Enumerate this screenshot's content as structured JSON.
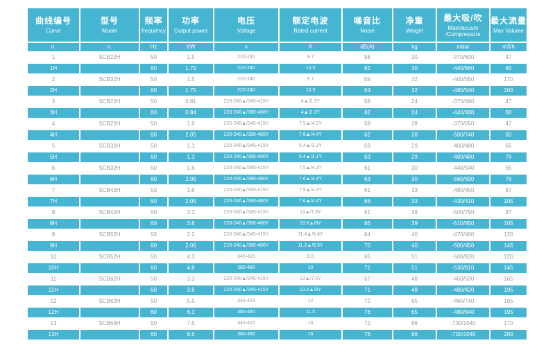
{
  "colors": {
    "teal": "#46b5d1",
    "row_text_grey": "#9a9a9a",
    "row_text_white": "#ffffff",
    "gridline": "#ffffff"
  },
  "chart_data": {
    "type": "table",
    "title": "",
    "legend": "none",
    "grid": "white gridlines, alternating white/teal rows",
    "columns": [
      {
        "zh": "曲线编号",
        "en": "Curve",
        "unit": "n."
      },
      {
        "zh": "型号",
        "en": "Model",
        "unit": "n."
      },
      {
        "zh": "频率",
        "en": "frequency",
        "unit": "Hz"
      },
      {
        "zh": "功率",
        "en": "Output power",
        "unit": "KW"
      },
      {
        "zh": "电压",
        "en": "Voltage",
        "unit": "v"
      },
      {
        "zh": "额定电波",
        "en": "Rated current",
        "unit": "A"
      },
      {
        "zh": "噪音比",
        "en": "Noise",
        "unit": "dB(A)"
      },
      {
        "zh": "净重",
        "en": "Weight",
        "unit": "kg"
      },
      {
        "zh": "最大吸/吹",
        "en": "MaxVacuum\n/Compressure",
        "unit": "mbar"
      },
      {
        "zh": "最大流量",
        "en": "Max Volume",
        "unit": "m3/h"
      }
    ],
    "rows": [
      [
        "1",
        "SCB22H",
        "50",
        "1.5",
        "220-240",
        "9.7",
        "58",
        "30",
        "-370/600",
        "47"
      ],
      [
        "1H",
        "",
        "60",
        "1.75",
        "220-240",
        "10.3",
        "62",
        "30",
        "-440/660",
        "60"
      ],
      [
        "2",
        "SCB32H",
        "50",
        "1.5",
        "220-240",
        "9.7",
        "59",
        "32",
        "-400/550",
        "170"
      ],
      [
        "2H",
        "",
        "60",
        "1.75",
        "220-240",
        "10.3",
        "63",
        "32",
        "-480/540",
        "200"
      ],
      [
        "3",
        "SCB22H",
        "50",
        "0.81",
        "220-240▲/345-415Y",
        "4▲/2.3Y",
        "58",
        "24",
        "-370/490",
        "47"
      ],
      [
        "3H",
        "",
        "60",
        "0.94",
        "220-240▲/380-480Y",
        "4▲/2.3Y",
        "62",
        "24",
        "-440/480",
        "60"
      ],
      [
        "4",
        "SCB22H",
        "50",
        "1.6",
        "220-240▲/345-415Y",
        "7.5▲/4.3Y",
        "58",
        "28",
        "-370/650",
        "47"
      ],
      [
        "4H",
        "",
        "60",
        "2.05",
        "220-240▲/380-480Y",
        "7.6▲/4.4Y",
        "62",
        "28",
        "-500/740",
        "60"
      ],
      [
        "5",
        "SCB32H",
        "50",
        "1.1",
        "220-240▲/345-415Y",
        "5.4▲/3.1Y",
        "59",
        "29",
        "-400/480",
        "65"
      ],
      [
        "5H",
        "",
        "60",
        "1.3",
        "220-240▲/380-480Y",
        "5.4▲/3.1Y",
        "63",
        "29",
        "-480/480",
        "76"
      ],
      [
        "6",
        "SCB32H",
        "50",
        "1.6",
        "220-240▲/345-415Y",
        "7.5▲/4.3Y",
        "61",
        "30",
        "-440/540",
        "65"
      ],
      [
        "6H",
        "",
        "60",
        "2.05",
        "220-240▲/380-480Y",
        "7.6▲/4.4Y",
        "63",
        "30",
        "-560/600",
        "76"
      ],
      [
        "7",
        "SCB42H",
        "50",
        "1.6",
        "220-240▲/345-415Y",
        "7.5▲/4.3Y",
        "61",
        "33",
        "-480/450",
        "87"
      ],
      [
        "7H",
        "",
        "60",
        "2.05",
        "220-240▲/380-480Y",
        "7.6▲/4.4Y",
        "66",
        "33",
        "-430/410",
        "105"
      ],
      [
        "8",
        "SCB42H",
        "50",
        "3.3",
        "220-240▲/345-415Y",
        "13▲/7.5Y",
        "61",
        "39",
        "-500/750",
        "87"
      ],
      [
        "8H",
        "",
        "60",
        "3.8",
        "220-240▲/380-480Y",
        "13.8▲/8Y",
        "66",
        "39",
        "-510/850",
        "105"
      ],
      [
        "9",
        "SCB52H",
        "50",
        "2.2",
        "220-240▲/345-415Y",
        "11.4▲/6.6Y",
        "64",
        "40",
        "-470/460",
        "120"
      ],
      [
        "9H",
        "",
        "60",
        "2.05",
        "220-240▲/380-480Y",
        "11.2▲/6.5Y",
        "70",
        "40",
        "-500/450",
        "145"
      ],
      [
        "10",
        "SCB52H",
        "50",
        "4.3",
        "345-415",
        "9.5",
        "65",
        "51",
        "-500/820",
        "120"
      ],
      [
        "10H",
        "",
        "60",
        "4.8",
        "380-480",
        "10",
        "71",
        "51",
        "-530/810",
        "145"
      ],
      [
        "11",
        "SCB62H",
        "50",
        "3.3",
        "220-240▲/345-415Y",
        "13▲/7.5Y",
        "67",
        "48",
        "-460/500",
        "165"
      ],
      [
        "12H",
        "",
        "60",
        "3.8",
        "220-240▲/345-415Y",
        "13.8▲/8Y",
        "71",
        "48",
        "-480/420",
        "195"
      ],
      [
        "12",
        "SCB62H",
        "50",
        "5.5",
        "345-415",
        "12",
        "72",
        "65",
        "-460/740",
        "165"
      ],
      [
        "12H",
        "",
        "60",
        "6.3",
        "380-480",
        "11.5",
        "76",
        "65",
        "-480/840",
        "195"
      ],
      [
        "13",
        "SCB63H",
        "50",
        "7.5",
        "345-415",
        "16",
        "72",
        "86",
        "-730/1040",
        "170"
      ],
      [
        "13H",
        "",
        "60",
        "8.6",
        "380-480",
        "16",
        "76",
        "86",
        "-700/1040",
        "200"
      ]
    ]
  }
}
